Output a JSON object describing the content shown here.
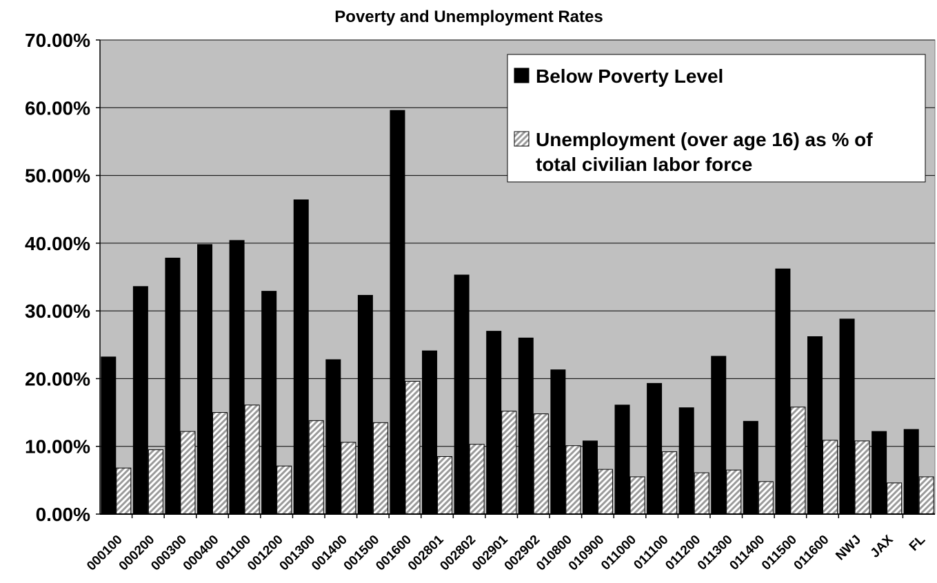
{
  "chart_data": {
    "type": "bar",
    "title": "Poverty and Unemployment Rates",
    "xlabel": "",
    "ylabel": "",
    "ylim": [
      0,
      0.7
    ],
    "yticks": [
      "0.00%",
      "10.00%",
      "20.00%",
      "30.00%",
      "40.00%",
      "50.00%",
      "60.00%",
      "70.00%"
    ],
    "grid": true,
    "legend_position": "top-right",
    "categories": [
      "000100",
      "000200",
      "000300",
      "000400",
      "001100",
      "001200",
      "001300",
      "001400",
      "001500",
      "001600",
      "002801",
      "002802",
      "002901",
      "002902",
      "010800",
      "010900",
      "011000",
      "011100",
      "011200",
      "011300",
      "011400",
      "011500",
      "011600",
      "NWJ",
      "JAX",
      "FL"
    ],
    "series": [
      {
        "name": "Below Poverty Level",
        "color": "#000000",
        "pattern": "solid",
        "values": [
          0.232,
          0.336,
          0.378,
          0.398,
          0.404,
          0.329,
          0.464,
          0.228,
          0.323,
          0.596,
          0.241,
          0.353,
          0.27,
          0.26,
          0.213,
          0.108,
          0.161,
          0.193,
          0.157,
          0.233,
          0.137,
          0.362,
          0.262,
          0.288,
          0.122,
          0.125
        ]
      },
      {
        "name": "Unemployment (over age 16) as % of total civilian labor force",
        "color": "#a0a0a0",
        "pattern": "diagonal-hatch",
        "values": [
          0.068,
          0.095,
          0.122,
          0.15,
          0.161,
          0.071,
          0.138,
          0.106,
          0.135,
          0.196,
          0.085,
          0.103,
          0.152,
          0.148,
          0.101,
          0.066,
          0.055,
          0.092,
          0.061,
          0.065,
          0.048,
          0.158,
          0.109,
          0.108,
          0.046,
          0.055
        ]
      }
    ],
    "legend": {
      "line1": "Below Poverty Level",
      "line2a": "Unemployment (over age 16) as % of",
      "line2b": "total civilian labor force"
    }
  }
}
